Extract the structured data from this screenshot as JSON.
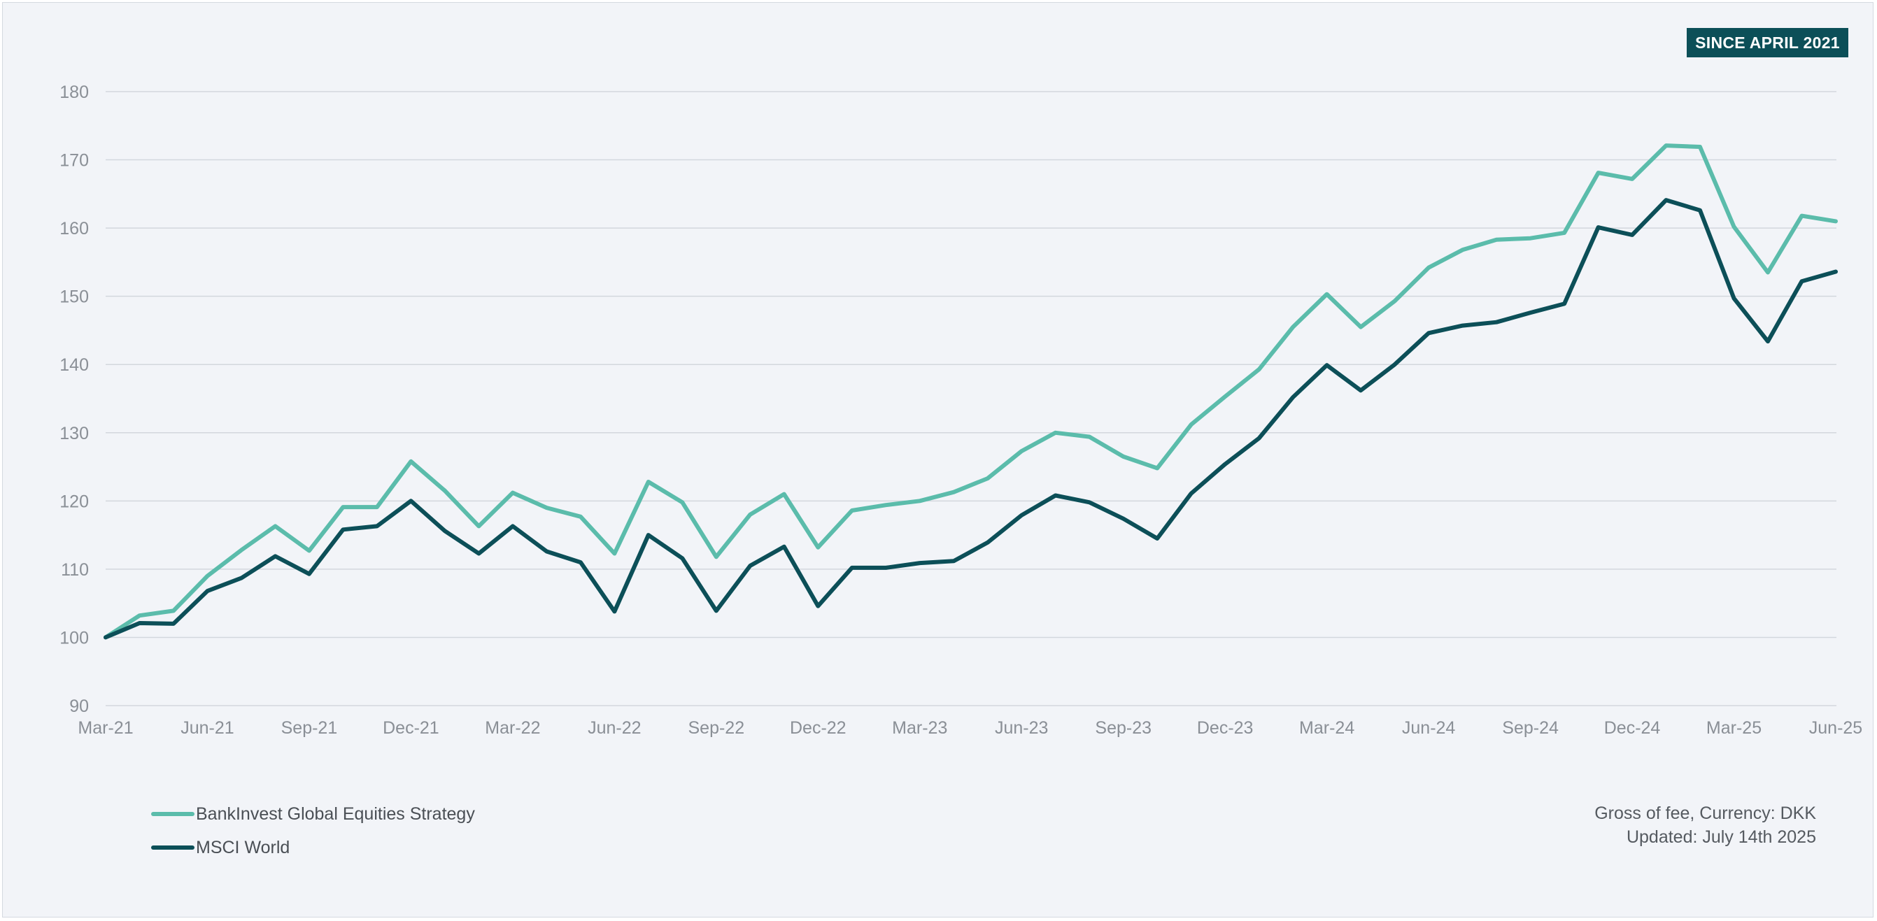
{
  "badge": "SINCE APRIL 2021",
  "notes": {
    "line1": "Gross of fee, Currency: DKK",
    "line2": "Updated: July 14th 2025"
  },
  "colors": {
    "strategy": "#5bbcab",
    "benchmark": "#0c4f58",
    "grid": "#d3d7dd",
    "badge_bg": "#0c4f58"
  },
  "chart_data": {
    "type": "line",
    "ylim": [
      90,
      180
    ],
    "yticks": [
      90,
      100,
      110,
      120,
      130,
      140,
      150,
      160,
      170,
      180
    ],
    "xtick_labels": [
      "Mar-21",
      "Jun-21",
      "Sep-21",
      "Dec-21",
      "Mar-22",
      "Jun-22",
      "Sep-22",
      "Dec-22",
      "Mar-23",
      "Jun-23",
      "Sep-23",
      "Dec-23",
      "Mar-24",
      "Jun-24",
      "Sep-24",
      "Dec-24",
      "Mar-25",
      "Jun-25"
    ],
    "x": [
      "Mar-21",
      "Apr-21",
      "May-21",
      "Jun-21",
      "Jul-21",
      "Aug-21",
      "Sep-21",
      "Oct-21",
      "Nov-21",
      "Dec-21",
      "Jan-22",
      "Feb-22",
      "Mar-22",
      "Apr-22",
      "May-22",
      "Jun-22",
      "Jul-22",
      "Aug-22",
      "Sep-22",
      "Oct-22",
      "Nov-22",
      "Dec-22",
      "Jan-23",
      "Feb-23",
      "Mar-23",
      "Apr-23",
      "May-23",
      "Jun-23",
      "Jul-23",
      "Aug-23",
      "Sep-23",
      "Oct-23",
      "Nov-23",
      "Dec-23",
      "Jan-24",
      "Feb-24",
      "Mar-24",
      "Apr-24",
      "May-24",
      "Jun-24",
      "Jul-24",
      "Aug-24",
      "Sep-24",
      "Oct-24",
      "Nov-24",
      "Dec-24",
      "Jan-25",
      "Feb-25",
      "Mar-25",
      "Apr-25",
      "May-25",
      "Jun-25"
    ],
    "grid": true,
    "legend_position": "bottom-left",
    "series": [
      {
        "name": "BankInvest Global Equities Strategy",
        "values": [
          100.0,
          103.2,
          103.9,
          109.0,
          112.8,
          116.3,
          112.7,
          119.1,
          119.1,
          125.8,
          121.5,
          116.3,
          121.2,
          119.0,
          117.7,
          112.3,
          122.8,
          119.8,
          111.8,
          118.0,
          121.0,
          113.2,
          118.6,
          119.4,
          120.0,
          121.3,
          123.3,
          127.3,
          130.0,
          129.4,
          126.5,
          124.8,
          131.2,
          135.3,
          139.3,
          145.5,
          150.3,
          145.5,
          149.3,
          154.2,
          156.8,
          158.3,
          158.5,
          159.3,
          168.1,
          167.2,
          172.1,
          171.9,
          160.2,
          153.5,
          161.8,
          161.0
        ]
      },
      {
        "name": "MSCI World",
        "values": [
          100.0,
          102.1,
          102.0,
          106.8,
          108.7,
          111.9,
          109.3,
          115.8,
          116.3,
          120.0,
          115.6,
          112.3,
          116.3,
          112.6,
          111.0,
          103.8,
          115.0,
          111.6,
          103.9,
          110.5,
          113.3,
          104.6,
          110.2,
          110.2,
          110.9,
          111.2,
          113.9,
          117.9,
          120.8,
          119.8,
          117.4,
          114.5,
          121.1,
          125.4,
          129.2,
          135.2,
          139.9,
          136.2,
          140.0,
          144.6,
          145.7,
          146.2,
          147.6,
          148.9,
          160.1,
          159.0,
          164.1,
          162.6,
          149.7,
          143.4,
          152.2,
          153.6
        ]
      }
    ]
  }
}
